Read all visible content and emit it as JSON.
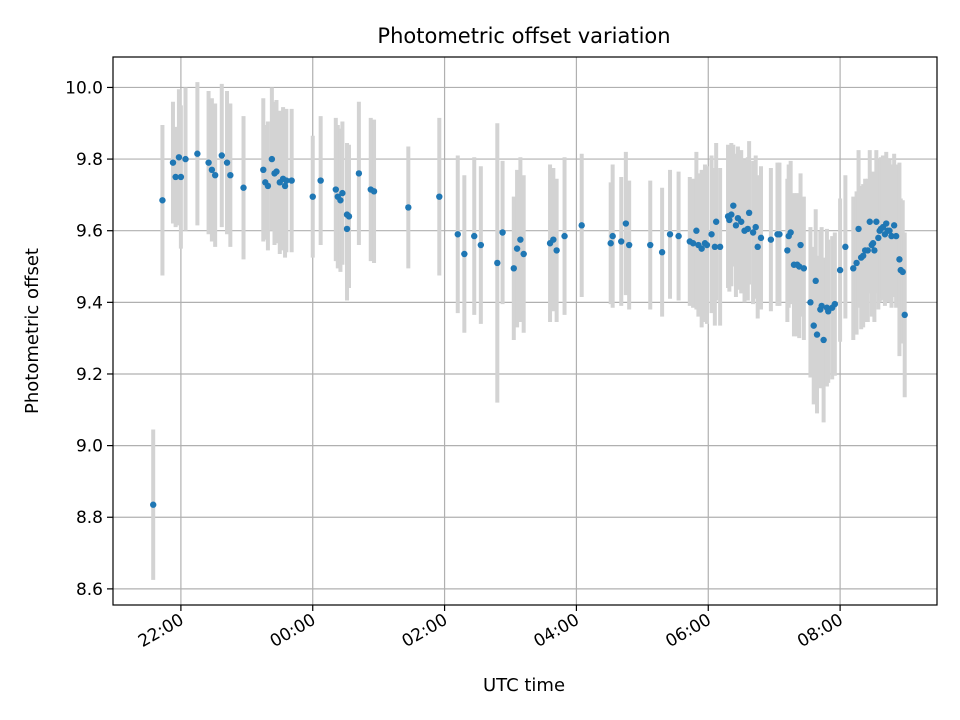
{
  "chart_data": {
    "type": "scatter",
    "title": "Photometric offset variation",
    "xlabel": "UTC time",
    "ylabel": "Photometric offset",
    "x_unit": "hours (UTC, values past 24:00 wrap to next day)",
    "xlim": [
      20.97,
      33.47
    ],
    "ylim": [
      8.555,
      10.085
    ],
    "grid": true,
    "legend": "none",
    "x_ticks": [
      {
        "value": 22,
        "label": "22:00"
      },
      {
        "value": 24,
        "label": "00:00"
      },
      {
        "value": 26,
        "label": "02:00"
      },
      {
        "value": 28,
        "label": "04:00"
      },
      {
        "value": 30,
        "label": "06:00"
      },
      {
        "value": 32,
        "label": "08:00"
      }
    ],
    "y_ticks": [
      {
        "value": 8.6,
        "label": "8.6"
      },
      {
        "value": 8.8,
        "label": "8.8"
      },
      {
        "value": 9.0,
        "label": "9.0"
      },
      {
        "value": 9.2,
        "label": "9.2"
      },
      {
        "value": 9.4,
        "label": "9.4"
      },
      {
        "value": 9.6,
        "label": "9.6"
      },
      {
        "value": 9.8,
        "label": "9.8"
      },
      {
        "value": 10.0,
        "label": "10.0"
      }
    ],
    "colors": {
      "point": "#1f77b4",
      "errorbar": "#d3d3d3",
      "grid": "#b0b0b0"
    },
    "series": [
      {
        "points": [
          [
            21.58,
            8.835,
            0.21
          ],
          [
            21.72,
            9.685,
            0.21
          ],
          [
            21.88,
            9.79,
            0.17
          ],
          [
            21.92,
            9.75,
            0.14
          ],
          [
            21.97,
            9.805,
            0.19
          ],
          [
            22.0,
            9.75,
            0.2
          ],
          [
            22.07,
            9.8,
            0.2
          ],
          [
            22.25,
            9.815,
            0.2
          ],
          [
            22.42,
            9.79,
            0.2
          ],
          [
            22.47,
            9.77,
            0.2
          ],
          [
            22.52,
            9.755,
            0.2
          ],
          [
            22.62,
            9.81,
            0.2
          ],
          [
            22.7,
            9.79,
            0.2
          ],
          [
            22.75,
            9.755,
            0.2
          ],
          [
            22.95,
            9.72,
            0.2
          ],
          [
            23.25,
            9.77,
            0.2
          ],
          [
            23.28,
            9.735,
            0.16
          ],
          [
            23.32,
            9.725,
            0.18
          ],
          [
            23.38,
            9.8,
            0.2
          ],
          [
            23.42,
            9.76,
            0.2
          ],
          [
            23.45,
            9.765,
            0.2
          ],
          [
            23.5,
            9.735,
            0.2
          ],
          [
            23.55,
            9.745,
            0.2
          ],
          [
            23.58,
            9.725,
            0.2
          ],
          [
            23.6,
            9.74,
            0.2
          ],
          [
            23.68,
            9.74,
            0.2
          ],
          [
            24.0,
            9.695,
            0.17
          ],
          [
            24.12,
            9.74,
            0.18
          ],
          [
            24.35,
            9.715,
            0.2
          ],
          [
            24.38,
            9.695,
            0.2
          ],
          [
            24.42,
            9.685,
            0.2
          ],
          [
            24.45,
            9.705,
            0.2
          ],
          [
            24.52,
            9.645,
            0.2
          ],
          [
            24.52,
            9.605,
            0.2
          ],
          [
            24.55,
            9.64,
            0.2
          ],
          [
            24.7,
            9.76,
            0.2
          ],
          [
            24.88,
            9.715,
            0.2
          ],
          [
            24.93,
            9.71,
            0.2
          ],
          [
            25.45,
            9.665,
            0.17
          ],
          [
            25.92,
            9.695,
            0.22
          ],
          [
            26.2,
            9.59,
            0.22
          ],
          [
            26.3,
            9.535,
            0.22
          ],
          [
            26.45,
            9.585,
            0.22
          ],
          [
            26.55,
            9.56,
            0.22
          ],
          [
            26.8,
            9.51,
            0.39
          ],
          [
            26.88,
            9.595,
            0.2
          ],
          [
            27.05,
            9.495,
            0.2
          ],
          [
            27.1,
            9.55,
            0.22
          ],
          [
            27.15,
            9.575,
            0.23
          ],
          [
            27.2,
            9.535,
            0.22
          ],
          [
            27.6,
            9.565,
            0.22
          ],
          [
            27.65,
            9.575,
            0.2
          ],
          [
            27.7,
            9.545,
            0.2
          ],
          [
            27.82,
            9.585,
            0.22
          ],
          [
            28.08,
            9.615,
            0.2
          ],
          [
            28.52,
            9.565,
            0.17
          ],
          [
            28.55,
            9.585,
            0.2
          ],
          [
            28.68,
            9.57,
            0.18
          ],
          [
            28.75,
            9.62,
            0.2
          ],
          [
            28.8,
            9.56,
            0.18
          ],
          [
            29.12,
            9.56,
            0.18
          ],
          [
            29.3,
            9.54,
            0.18
          ],
          [
            29.42,
            9.59,
            0.18
          ],
          [
            29.55,
            9.585,
            0.18
          ],
          [
            29.72,
            9.57,
            0.18
          ],
          [
            29.77,
            9.565,
            0.18
          ],
          [
            29.82,
            9.6,
            0.22
          ],
          [
            29.85,
            9.56,
            0.2
          ],
          [
            29.9,
            9.55,
            0.22
          ],
          [
            29.95,
            9.565,
            0.22
          ],
          [
            29.98,
            9.56,
            0.22
          ],
          [
            30.05,
            9.59,
            0.22
          ],
          [
            30.1,
            9.555,
            0.22
          ],
          [
            30.12,
            9.625,
            0.22
          ],
          [
            30.18,
            9.555,
            0.22
          ],
          [
            30.3,
            9.64,
            0.2
          ],
          [
            30.32,
            9.63,
            0.2
          ],
          [
            30.35,
            9.645,
            0.2
          ],
          [
            30.38,
            9.67,
            0.17
          ],
          [
            30.42,
            9.615,
            0.2
          ],
          [
            30.45,
            9.635,
            0.2
          ],
          [
            30.5,
            9.625,
            0.2
          ],
          [
            30.55,
            9.6,
            0.2
          ],
          [
            30.6,
            9.605,
            0.2
          ],
          [
            30.62,
            9.65,
            0.2
          ],
          [
            30.68,
            9.595,
            0.2
          ],
          [
            30.72,
            9.61,
            0.2
          ],
          [
            30.75,
            9.555,
            0.2
          ],
          [
            30.8,
            9.58,
            0.2
          ],
          [
            30.95,
            9.575,
            0.2
          ],
          [
            31.05,
            9.59,
            0.2
          ],
          [
            31.08,
            9.59,
            0.2
          ],
          [
            31.2,
            9.545,
            0.2
          ],
          [
            31.22,
            9.585,
            0.2
          ],
          [
            31.25,
            9.595,
            0.2
          ],
          [
            31.3,
            9.505,
            0.2
          ],
          [
            31.35,
            9.505,
            0.2
          ],
          [
            31.38,
            9.5,
            0.2
          ],
          [
            31.4,
            9.56,
            0.2
          ],
          [
            31.45,
            9.495,
            0.2
          ],
          [
            31.55,
            9.4,
            0.21
          ],
          [
            31.6,
            9.335,
            0.22
          ],
          [
            31.63,
            9.46,
            0.2
          ],
          [
            31.65,
            9.31,
            0.22
          ],
          [
            31.7,
            9.38,
            0.22
          ],
          [
            31.72,
            9.39,
            0.22
          ],
          [
            31.75,
            9.295,
            0.23
          ],
          [
            31.8,
            9.385,
            0.22
          ],
          [
            31.82,
            9.375,
            0.2
          ],
          [
            31.88,
            9.385,
            0.2
          ],
          [
            31.92,
            9.395,
            0.2
          ],
          [
            32.0,
            9.49,
            0.2
          ],
          [
            32.08,
            9.555,
            0.2
          ],
          [
            32.2,
            9.495,
            0.2
          ],
          [
            32.25,
            9.51,
            0.2
          ],
          [
            32.28,
            9.605,
            0.22
          ],
          [
            32.32,
            9.525,
            0.2
          ],
          [
            32.35,
            9.53,
            0.2
          ],
          [
            32.38,
            9.545,
            0.2
          ],
          [
            32.42,
            9.545,
            0.2
          ],
          [
            32.45,
            9.625,
            0.2
          ],
          [
            32.48,
            9.56,
            0.2
          ],
          [
            32.5,
            9.565,
            0.2
          ],
          [
            32.52,
            9.545,
            0.2
          ],
          [
            32.55,
            9.625,
            0.2
          ],
          [
            32.58,
            9.58,
            0.2
          ],
          [
            32.6,
            9.6,
            0.2
          ],
          [
            32.62,
            9.605,
            0.2
          ],
          [
            32.65,
            9.61,
            0.2
          ],
          [
            32.68,
            9.59,
            0.2
          ],
          [
            32.7,
            9.62,
            0.2
          ],
          [
            32.72,
            9.6,
            0.2
          ],
          [
            32.75,
            9.6,
            0.2
          ],
          [
            32.78,
            9.585,
            0.2
          ],
          [
            32.82,
            9.615,
            0.2
          ],
          [
            32.85,
            9.585,
            0.2
          ],
          [
            32.9,
            9.52,
            0.27
          ],
          [
            32.92,
            9.49,
            0.2
          ],
          [
            32.95,
            9.485,
            0.2
          ],
          [
            32.98,
            9.365,
            0.23
          ]
        ]
      }
    ]
  }
}
